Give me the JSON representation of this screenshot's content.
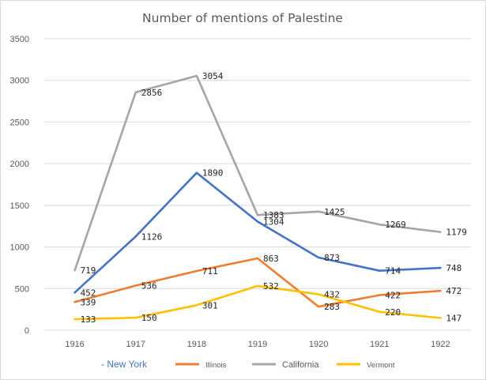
{
  "chart_data": {
    "type": "line",
    "title": "Number of mentions of Palestine",
    "xlabel": "",
    "ylabel": "",
    "categories": [
      "1916",
      "1917",
      "1918",
      "1919",
      "1920",
      "1921",
      "1922"
    ],
    "ylim": [
      0,
      3500
    ],
    "yticks": [
      0,
      500,
      1000,
      1500,
      2000,
      2500,
      3000,
      3500
    ],
    "grid": true,
    "legend": "bottom",
    "series": [
      {
        "name": "- New York",
        "color": "#4472c4",
        "values": [
          452,
          1126,
          1890,
          1304,
          873,
          714,
          748
        ],
        "labels": [
          "452",
          "1126",
          "1890",
          "1304",
          "873",
          "714",
          "748"
        ]
      },
      {
        "name": "Illinois",
        "color": "#ed7d31",
        "values": [
          339,
          536,
          711,
          863,
          283,
          422,
          472
        ],
        "labels": [
          "339",
          "536",
          "711",
          "863",
          "283",
          "422",
          "472"
        ]
      },
      {
        "name": "California",
        "color": "#a5a5a5",
        "values": [
          719,
          2856,
          3054,
          1383,
          1425,
          1269,
          1179
        ],
        "labels": [
          "719",
          "2856",
          "3054",
          "1383",
          "1425",
          "1269",
          "1179"
        ]
      },
      {
        "name": "Vermont",
        "color": "#ffc000",
        "values": [
          133,
          150,
          301,
          532,
          432,
          220,
          147
        ],
        "labels": [
          "133",
          "150",
          "301",
          "532",
          "432",
          "220",
          "147"
        ]
      }
    ]
  }
}
